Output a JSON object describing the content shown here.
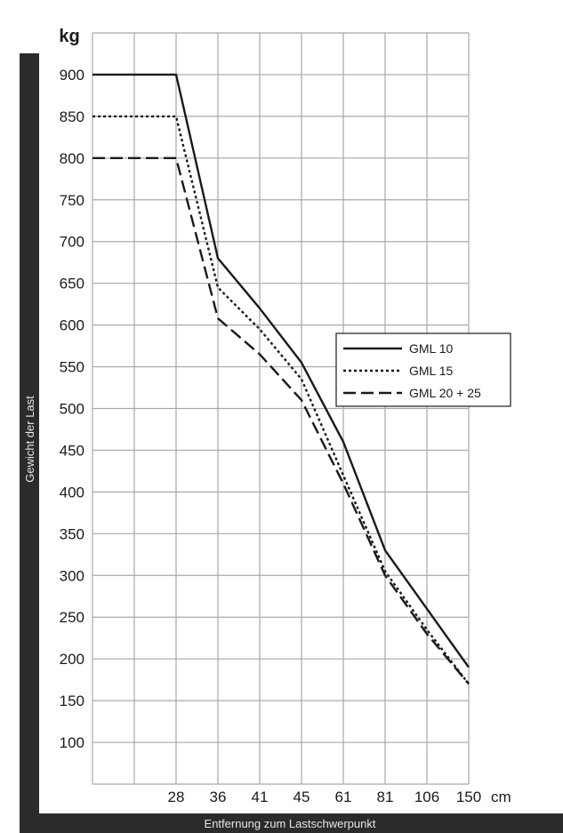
{
  "chart_data": {
    "type": "line",
    "title": "",
    "xlabel": "Entfernung zum Lastschwerpunkt",
    "ylabel": "Gewicht der Last",
    "x_unit": "cm",
    "y_unit": "kg",
    "x": [
      28,
      36,
      41,
      45,
      61,
      81,
      106,
      150
    ],
    "x_scale": "categorical",
    "y_ticks": [
      100,
      150,
      200,
      250,
      300,
      350,
      400,
      450,
      500,
      550,
      600,
      650,
      700,
      750,
      800,
      850,
      900
    ],
    "ylim": [
      50,
      950
    ],
    "grid": true,
    "legend_position": "right",
    "series": [
      {
        "name": "GML 10",
        "style": "solid",
        "points": [
          [
            0,
            900
          ],
          [
            28,
            900
          ],
          [
            36,
            680
          ],
          [
            41,
            620
          ],
          [
            45,
            555
          ],
          [
            61,
            460
          ],
          [
            81,
            330
          ],
          [
            106,
            260
          ],
          [
            150,
            190
          ]
        ]
      },
      {
        "name": "GML 15",
        "style": "dotted",
        "points": [
          [
            0,
            850
          ],
          [
            28,
            850
          ],
          [
            36,
            645
          ],
          [
            41,
            595
          ],
          [
            45,
            535
          ],
          [
            61,
            420
          ],
          [
            81,
            305
          ],
          [
            106,
            235
          ],
          [
            150,
            170
          ]
        ]
      },
      {
        "name": "GML 20 + 25",
        "style": "dashed",
        "points": [
          [
            0,
            800
          ],
          [
            28,
            800
          ],
          [
            36,
            608
          ],
          [
            41,
            565
          ],
          [
            45,
            510
          ],
          [
            61,
            410
          ],
          [
            81,
            300
          ],
          [
            106,
            230
          ],
          [
            150,
            170
          ]
        ]
      }
    ],
    "colors": {
      "line": "#1a1a1a",
      "grid": "#a8a8a8",
      "side_bar": "#2b2b2b"
    }
  }
}
